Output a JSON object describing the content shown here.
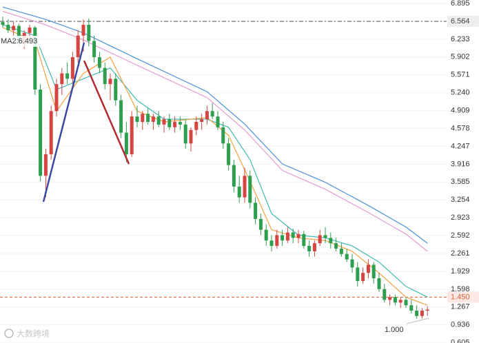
{
  "chart_data": {
    "type": "candlestick",
    "annotations": [
      "MA2:6.493",
      "1.000"
    ],
    "watermark": "大数跨境",
    "up_color": "#d64541",
    "down_color": "#2e9e4f",
    "ylim": [
      0.6,
      6.96
    ],
    "yticks": [
      6.895,
      6.564,
      6.233,
      5.902,
      5.571,
      {
        "value": 5.24,
        "label": "5.240"
      },
      4.909,
      4.578,
      4.247,
      3.916,
      3.585,
      3.254,
      2.923,
      2.592,
      2.261,
      1.929,
      1.598,
      1.267,
      0.936,
      0.605
    ],
    "grid": true,
    "hlines": [
      {
        "value": 6.564,
        "label": "6.564",
        "color": "#444444"
      },
      {
        "value": 1.45,
        "label": "1.450",
        "color": "#e0603a"
      }
    ],
    "candles": [
      [
        6.55,
        6.65,
        6.45,
        6.5
      ],
      [
        6.5,
        6.6,
        6.35,
        6.4
      ],
      [
        6.4,
        6.55,
        6.3,
        6.48
      ],
      [
        6.48,
        6.52,
        6.1,
        6.15
      ],
      [
        6.15,
        6.4,
        6.05,
        6.35
      ],
      [
        6.35,
        6.5,
        6.2,
        6.45
      ],
      [
        6.45,
        6.48,
        5.2,
        5.3
      ],
      [
        5.3,
        5.4,
        3.6,
        3.7
      ],
      [
        3.7,
        4.2,
        3.3,
        4.1
      ],
      [
        4.1,
        5.0,
        4.0,
        4.9
      ],
      [
        4.9,
        5.5,
        4.8,
        5.4
      ],
      [
        5.4,
        5.7,
        5.2,
        5.6
      ],
      [
        5.6,
        5.8,
        5.4,
        5.5
      ],
      [
        5.5,
        6.0,
        5.4,
        5.9
      ],
      [
        5.9,
        6.4,
        5.8,
        6.3
      ],
      [
        6.3,
        6.6,
        6.0,
        6.5
      ],
      [
        6.5,
        6.62,
        6.1,
        6.2
      ],
      [
        6.2,
        6.3,
        5.8,
        5.9
      ],
      [
        5.9,
        6.0,
        5.6,
        5.7
      ],
      [
        5.7,
        5.8,
        5.3,
        5.4
      ],
      [
        5.4,
        5.6,
        5.1,
        5.5
      ],
      [
        5.5,
        5.6,
        5.0,
        5.1
      ],
      [
        5.1,
        5.2,
        4.4,
        4.5
      ],
      [
        4.5,
        4.7,
        3.95,
        4.1
      ],
      [
        4.1,
        4.9,
        4.05,
        4.8
      ],
      [
        4.8,
        5.0,
        4.6,
        4.7
      ],
      [
        4.7,
        4.9,
        4.55,
        4.85
      ],
      [
        4.85,
        4.95,
        4.65,
        4.7
      ],
      [
        4.7,
        4.85,
        4.55,
        4.8
      ],
      [
        4.8,
        4.9,
        4.6,
        4.65
      ],
      [
        4.65,
        4.8,
        4.5,
        4.75
      ],
      [
        4.75,
        4.85,
        4.55,
        4.6
      ],
      [
        4.6,
        4.8,
        4.5,
        4.7
      ],
      [
        4.7,
        4.8,
        4.55,
        4.65
      ],
      [
        4.65,
        4.75,
        4.2,
        4.3
      ],
      [
        4.3,
        4.6,
        4.15,
        4.55
      ],
      [
        4.55,
        4.8,
        4.45,
        4.7
      ],
      [
        4.7,
        4.85,
        4.55,
        4.75
      ],
      [
        4.75,
        5.0,
        4.65,
        4.9
      ],
      [
        4.9,
        5.05,
        4.75,
        4.8
      ],
      [
        4.8,
        4.9,
        4.55,
        4.6
      ],
      [
        4.6,
        4.7,
        4.2,
        4.3
      ],
      [
        4.3,
        4.4,
        3.8,
        3.9
      ],
      [
        3.9,
        4.0,
        3.4,
        3.5
      ],
      [
        3.5,
        3.7,
        3.2,
        3.3
      ],
      [
        3.3,
        3.85,
        3.2,
        3.7
      ],
      [
        3.7,
        3.8,
        3.1,
        3.2
      ],
      [
        3.2,
        3.3,
        2.8,
        2.9
      ],
      [
        2.9,
        3.0,
        2.6,
        2.7
      ],
      [
        2.7,
        2.8,
        2.4,
        2.5
      ],
      [
        2.5,
        2.6,
        2.3,
        2.4
      ],
      [
        2.4,
        2.7,
        2.35,
        2.6
      ],
      [
        2.6,
        2.7,
        2.4,
        2.5
      ],
      [
        2.5,
        2.75,
        2.45,
        2.65
      ],
      [
        2.65,
        2.72,
        2.45,
        2.55
      ],
      [
        2.55,
        2.7,
        2.45,
        2.62
      ],
      [
        2.62,
        2.68,
        2.35,
        2.4
      ],
      [
        2.4,
        2.5,
        2.2,
        2.3
      ],
      [
        2.3,
        2.5,
        2.2,
        2.45
      ],
      [
        2.45,
        2.7,
        2.4,
        2.6
      ],
      [
        2.6,
        2.75,
        2.45,
        2.55
      ],
      [
        2.55,
        2.65,
        2.35,
        2.45
      ],
      [
        2.45,
        2.55,
        2.3,
        2.35
      ],
      [
        2.35,
        2.45,
        2.2,
        2.25
      ],
      [
        2.25,
        2.35,
        2.1,
        2.15
      ],
      [
        2.15,
        2.25,
        1.9,
        2.0
      ],
      [
        2.0,
        2.1,
        1.65,
        1.75
      ],
      [
        1.75,
        2.0,
        1.7,
        1.9
      ],
      [
        1.9,
        2.15,
        1.8,
        2.05
      ],
      [
        2.05,
        2.1,
        1.7,
        1.8
      ],
      [
        1.8,
        1.9,
        1.55,
        1.6
      ],
      [
        1.6,
        1.7,
        1.35,
        1.4
      ],
      [
        1.4,
        1.5,
        1.3,
        1.45
      ],
      [
        1.45,
        1.5,
        1.3,
        1.35
      ],
      [
        1.35,
        1.45,
        1.25,
        1.4
      ],
      [
        1.4,
        1.45,
        1.25,
        1.3
      ],
      [
        1.3,
        1.4,
        1.15,
        1.2
      ],
      [
        1.2,
        1.3,
        1.05,
        1.1
      ],
      [
        1.1,
        1.25,
        1.05,
        1.2
      ],
      [
        1.2,
        1.28,
        1.1,
        1.22
      ]
    ],
    "series": [
      {
        "color": "#4a8fd8",
        "x": [
          0,
          8,
          15,
          25,
          38,
          45,
          52,
          60,
          68,
          75,
          79
        ],
        "values": [
          6.83,
          6.6,
          6.35,
          5.87,
          5.26,
          4.66,
          3.92,
          3.58,
          3.15,
          2.75,
          2.45
        ]
      },
      {
        "color": "#e39ad0",
        "x": [
          0,
          8,
          15,
          25,
          38,
          45,
          52,
          60,
          68,
          75,
          79
        ],
        "values": [
          6.75,
          6.5,
          6.22,
          5.75,
          5.15,
          4.55,
          3.8,
          3.45,
          3.02,
          2.62,
          2.3
        ]
      },
      {
        "color": "#3fb8b0",
        "x": [
          0,
          6,
          10,
          15,
          20,
          25,
          30,
          38,
          42,
          46,
          50,
          55,
          60,
          65,
          70,
          75,
          79
        ],
        "values": [
          6.5,
          6.3,
          5.3,
          5.5,
          5.7,
          5.1,
          4.75,
          4.75,
          4.6,
          4.0,
          3.0,
          2.6,
          2.55,
          2.4,
          2.1,
          1.65,
          1.45
        ]
      },
      {
        "color": "#f0a040",
        "x": [
          0,
          6,
          10,
          15,
          20,
          25,
          30,
          38,
          42,
          46,
          50,
          55,
          60,
          65,
          70,
          75,
          79
        ],
        "values": [
          6.45,
          6.2,
          4.9,
          5.6,
          5.9,
          4.9,
          4.7,
          4.78,
          4.45,
          3.6,
          2.7,
          2.55,
          2.5,
          2.3,
          1.9,
          1.45,
          1.3
        ]
      }
    ]
  }
}
